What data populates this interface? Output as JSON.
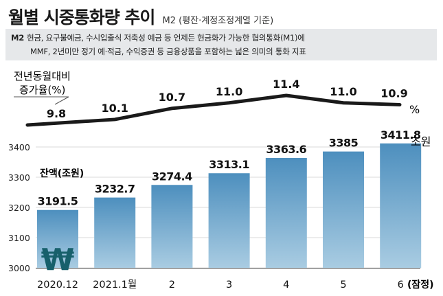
{
  "header": {
    "title": "월별 시중통화량 추이",
    "subtitle": "M2 (평잔·계정조정계열 기준)"
  },
  "note": {
    "tag": "M2",
    "line1": "현금, 요구불예금, 수시입출식 저축성 예금 등 언제든 현금화가 가능한 협의통화(M1)에",
    "line2": "MMF, 2년미만 정기 예·적금, 수익증권 등 금융상품을 포함하는 넓은 의미의 통화 지표"
  },
  "growth_label": {
    "line1": "전년동월대비",
    "line2": "증가율(%)"
  },
  "balance_label": "잔액(조원)",
  "unit_suffix_pct": "%",
  "unit_suffix_won": "조원",
  "provisional_note": "(잠정)",
  "won_symbol": "₩",
  "colors": {
    "bar_top": "#4d8fbe",
    "bar_bottom": "#a9cce2",
    "line": "#1a1a1a",
    "note_bg": "#e6e8ea",
    "won_symbol": "#17606b"
  },
  "chart_data": [
    {
      "type": "bar",
      "categories": [
        "2020.12",
        "2021.1월",
        "2",
        "3",
        "4",
        "5",
        "6"
      ],
      "values": [
        3191.5,
        3232.7,
        3274.4,
        3313.1,
        3363.6,
        3385,
        3411.8
      ],
      "data_labels": [
        "3191.5",
        "3232.7",
        "3274.4",
        "3313.1",
        "3363.6",
        "3385",
        "3411.8"
      ],
      "ylabel": "잔액(조원)",
      "ylim": [
        3000,
        3400
      ],
      "yticks": [
        3000,
        3100,
        3200,
        3300,
        3400
      ],
      "ytick_labels": [
        "3000",
        "3100",
        "3200",
        "3300",
        "3400"
      ]
    },
    {
      "type": "line",
      "categories": [
        "2020.12",
        "2021.1월",
        "2",
        "3",
        "4",
        "5",
        "6"
      ],
      "values": [
        9.8,
        10.1,
        10.7,
        11.0,
        11.4,
        11.0,
        10.9
      ],
      "data_labels": [
        "9.8",
        "10.1",
        "10.7",
        "11.0",
        "11.4",
        "11.0",
        "10.9"
      ],
      "ylabel": "전년동월대비 증가율(%)"
    }
  ]
}
